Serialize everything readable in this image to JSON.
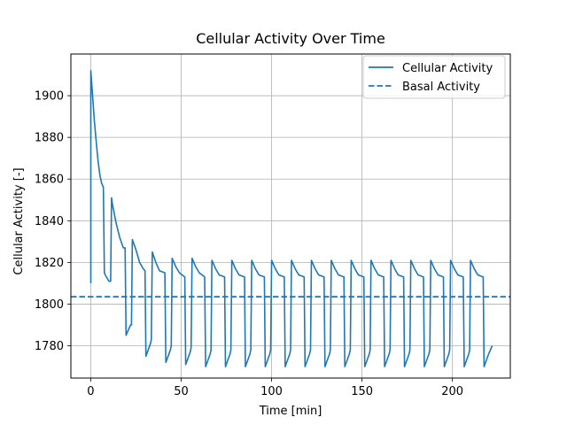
{
  "chart_data": {
    "type": "line",
    "title": "Cellular Activity Over Time",
    "xlabel": "Time [min]",
    "ylabel": "Cellular Activity [-]",
    "xlim": [
      -11,
      232
    ],
    "ylim": [
      1764.5,
      1920
    ],
    "xticks": [
      0,
      50,
      100,
      150,
      200
    ],
    "yticks": [
      1780,
      1800,
      1820,
      1840,
      1860,
      1880,
      1900
    ],
    "grid": true,
    "legend_position": "upper right",
    "colors": {
      "series": "#1f77b4"
    },
    "series": [
      {
        "name": "Cellular Activity",
        "style": "solid",
        "x": [
          0,
          0,
          1,
          2,
          3,
          4,
          5,
          6,
          7,
          7.5,
          8,
          10,
          11,
          11.5,
          12,
          14,
          16,
          18,
          19,
          19.5,
          21,
          22,
          22.5,
          23,
          25,
          27,
          29,
          30,
          30.5,
          33,
          33.5,
          34,
          36,
          38,
          41,
          41.5,
          44,
          44.5,
          45,
          47,
          49,
          52,
          52.5,
          55,
          55.5,
          56,
          58,
          60,
          63,
          63.5,
          66,
          66.5,
          67,
          69,
          71,
          74,
          74.5,
          77,
          77.5,
          78,
          80,
          82,
          85,
          85.5,
          88,
          88.5,
          89,
          91,
          93,
          96,
          96.5,
          99,
          99.5,
          100,
          102,
          104,
          107,
          107.5,
          110,
          110.5,
          111,
          113,
          115,
          118,
          118.5,
          121,
          121.5,
          122,
          124,
          126,
          129,
          129.5,
          132,
          132.5,
          133,
          135,
          137,
          140,
          140.5,
          143,
          143.5,
          144,
          146,
          148,
          151,
          151.5,
          154,
          154.5,
          155,
          157,
          159,
          162,
          162.5,
          165,
          165.5,
          166,
          168,
          170,
          173,
          173.5,
          176,
          176.5,
          177,
          179,
          181,
          184,
          184.5,
          187,
          187.5,
          188,
          190,
          192,
          195,
          195.5,
          198,
          198.5,
          199,
          201,
          203,
          206,
          206.5,
          209,
          209.5,
          210,
          212,
          214,
          217,
          217.5,
          220,
          222
        ],
        "y": [
          1810,
          1912,
          1900,
          1888,
          1878,
          1869,
          1862,
          1858,
          1856,
          1815,
          1814,
          1811,
          1811,
          1851,
          1848,
          1839,
          1832,
          1827,
          1827,
          1785,
          1788,
          1790,
          1790,
          1831,
          1826,
          1820,
          1817,
          1816,
          1775,
          1781,
          1783,
          1825,
          1820,
          1816,
          1815,
          1772,
          1778,
          1780,
          1822,
          1818,
          1815,
          1813,
          1771,
          1777,
          1779,
          1822,
          1818,
          1815,
          1813,
          1770,
          1776,
          1778,
          1821,
          1817,
          1814,
          1813,
          1770,
          1776,
          1778,
          1821,
          1817,
          1814,
          1813,
          1770,
          1776,
          1778,
          1821,
          1817,
          1814,
          1813,
          1770,
          1776,
          1778,
          1821,
          1817,
          1814,
          1813,
          1770,
          1776,
          1778,
          1821,
          1817,
          1814,
          1813,
          1770,
          1776,
          1778,
          1821,
          1817,
          1814,
          1813,
          1770,
          1776,
          1778,
          1821,
          1817,
          1814,
          1813,
          1770,
          1776,
          1778,
          1821,
          1817,
          1814,
          1813,
          1770,
          1776,
          1778,
          1821,
          1817,
          1814,
          1813,
          1770,
          1776,
          1778,
          1821,
          1817,
          1814,
          1813,
          1770,
          1776,
          1778,
          1821,
          1817,
          1814,
          1813,
          1770,
          1776,
          1778,
          1821,
          1817,
          1814,
          1813,
          1770,
          1776,
          1778,
          1821,
          1817,
          1814,
          1813,
          1770,
          1776,
          1778,
          1821,
          1817,
          1814,
          1813,
          1770,
          1776,
          1780
        ]
      },
      {
        "name": "Basal Activity",
        "style": "dashed",
        "y_constant": 1803.5
      }
    ]
  }
}
